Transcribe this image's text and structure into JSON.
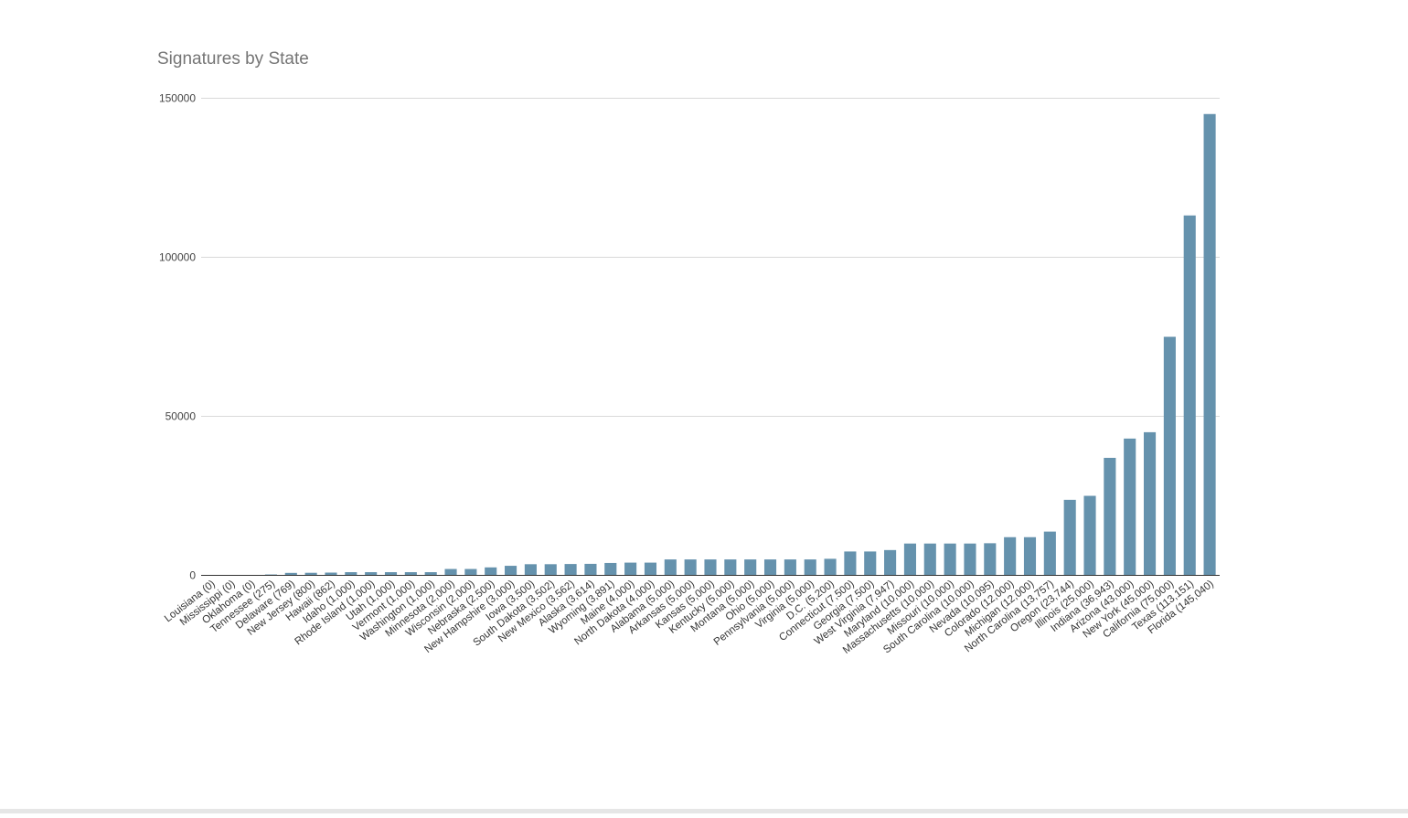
{
  "chart_data": {
    "type": "bar",
    "title": "Signatures by State",
    "xlabel": "",
    "ylabel": "",
    "ylim": [
      0,
      150000
    ],
    "yticks": [
      "0",
      "50000",
      "100000",
      "150000"
    ],
    "grid": true,
    "legend": "none",
    "bar_color": "#6592ad",
    "grid_color": "#d9d9d9",
    "categories": [
      "Louisiana (0)",
      "Mississippi (0)",
      "Oklahoma (0)",
      "Tennessee (275)",
      "Delaware (769)",
      "New Jersey (800)",
      "Hawaii (862)",
      "Idaho (1,000)",
      "Rhode Island (1,000)",
      "Utah (1,000)",
      "Vermont (1,000)",
      "Washington (1,000)",
      "Minnesota (2,000)",
      "Wisconsin (2,000)",
      "Nebraska (2,500)",
      "New Hampshire (3,000)",
      "Iowa (3,500)",
      "South Dakota (3,502)",
      "New Mexico (3,562)",
      "Alaska (3,614)",
      "Wyoming (3,891)",
      "Maine (4,000)",
      "North Dakota (4,000)",
      "Alabama (5,000)",
      "Arkansas (5,000)",
      "Kansas (5,000)",
      "Kentucky (5,000)",
      "Montana (5,000)",
      "Ohio (5,000)",
      "Pennsylvania (5,000)",
      "Virginia (5,000)",
      "D.C. (5,200)",
      "Connecticut (7,500)",
      "Georgia (7,500)",
      "West Virginia (7,947)",
      "Maryland (10,000)",
      "Massachusetts (10,000)",
      "Missouri (10,000)",
      "South Carolina (10,000)",
      "Nevada (10,095)",
      "Colorado (12,000)",
      "Michigan (12,000)",
      "North Carolina (13,757)",
      "Oregon (23,744)",
      "Illinois (25,000)",
      "Indiana (36,943)",
      "Arizona (43,000)",
      "New York (45,000)",
      "California (75,000)",
      "Texas (113,151)",
      "Florida (145,040)"
    ],
    "values": [
      0,
      0,
      0,
      275,
      769,
      800,
      862,
      1000,
      1000,
      1000,
      1000,
      1000,
      2000,
      2000,
      2500,
      3000,
      3500,
      3502,
      3562,
      3614,
      3891,
      4000,
      4000,
      5000,
      5000,
      5000,
      5000,
      5000,
      5000,
      5000,
      5000,
      5200,
      7500,
      7500,
      7947,
      10000,
      10000,
      10000,
      10000,
      10095,
      12000,
      12000,
      13757,
      23744,
      25000,
      36943,
      43000,
      45000,
      75000,
      113151,
      145040
    ]
  }
}
